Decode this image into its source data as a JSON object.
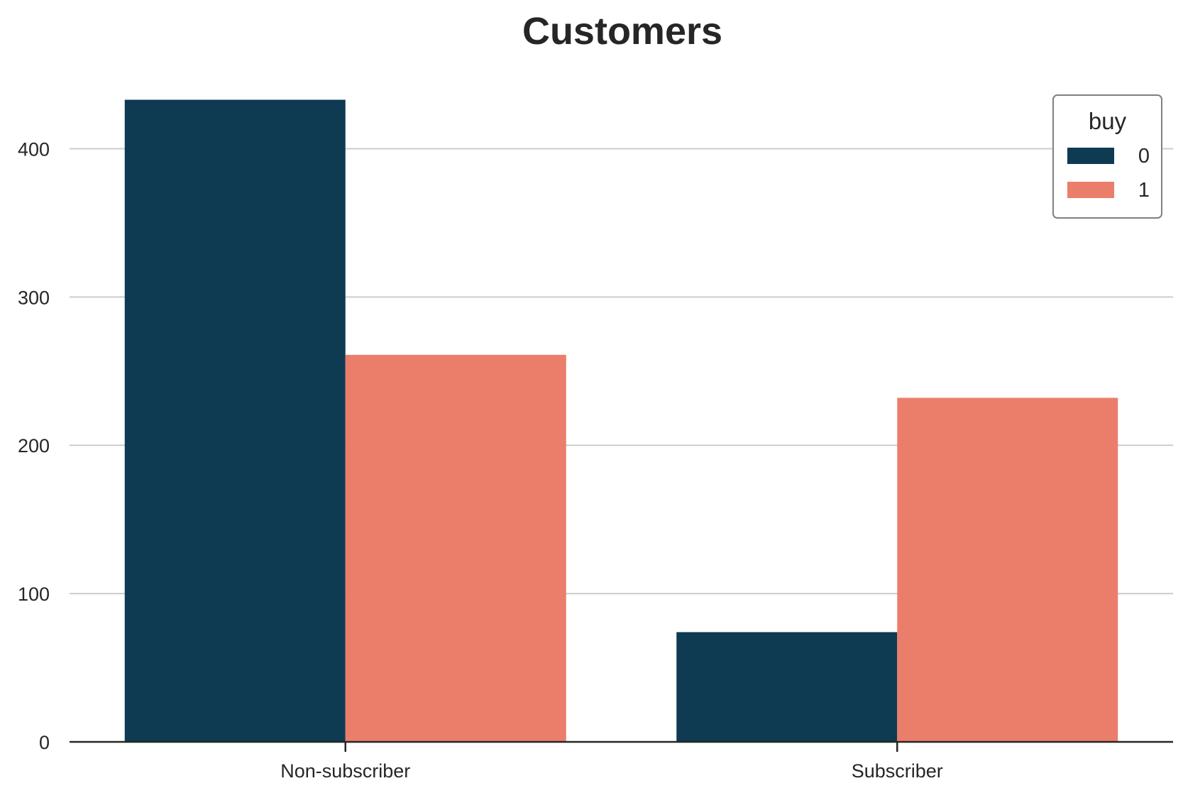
{
  "chart_data": {
    "type": "bar",
    "title": "Customers",
    "xlabel": "",
    "ylabel": "",
    "categories": [
      "Non-subscriber",
      "Subscriber"
    ],
    "series": [
      {
        "name": "0",
        "color": "#0e3a52",
        "values": [
          433,
          74
        ]
      },
      {
        "name": "1",
        "color": "#ea7e6b",
        "values": [
          261,
          232
        ]
      }
    ],
    "ylim": [
      0,
      450
    ],
    "yticks": [
      0,
      100,
      200,
      300,
      400
    ],
    "grid": "y",
    "legend": {
      "title": "buy",
      "position": "top-right"
    }
  }
}
